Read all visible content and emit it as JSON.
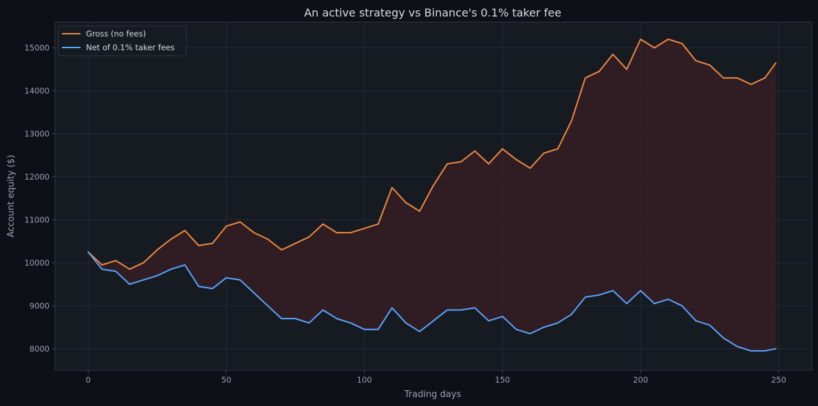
{
  "chart_data": {
    "type": "line",
    "title": "An active strategy vs Binance's 0.1% taker fee",
    "xlabel": "Trading days",
    "ylabel": "Account equity ($)",
    "xlim": [
      -12,
      262
    ],
    "ylim": [
      7500,
      15600
    ],
    "xticks": [
      0,
      50,
      100,
      150,
      200,
      250
    ],
    "yticks": [
      8000,
      9000,
      10000,
      11000,
      12000,
      13000,
      14000,
      15000
    ],
    "grid": true,
    "legend": "top-left",
    "fill_between": true,
    "colors": {
      "background": "#0d1117",
      "plot_background": "#161b22",
      "gross": "#f0883e",
      "net": "#58a6ff",
      "fill": "#3a1f24"
    },
    "series": [
      {
        "name": "Gross (no fees)",
        "x": [
          0,
          5,
          10,
          15,
          20,
          25,
          30,
          35,
          40,
          45,
          50,
          55,
          60,
          65,
          70,
          75,
          80,
          85,
          90,
          95,
          100,
          105,
          110,
          115,
          120,
          125,
          130,
          135,
          140,
          145,
          150,
          155,
          160,
          165,
          170,
          175,
          180,
          185,
          190,
          195,
          200,
          205,
          210,
          215,
          220,
          225,
          230,
          235,
          240,
          245,
          249
        ],
        "values": [
          10250,
          9950,
          10050,
          9850,
          10000,
          10300,
          10550,
          10750,
          10400,
          10450,
          10850,
          10950,
          10700,
          10550,
          10300,
          10450,
          10600,
          10900,
          10700,
          10700,
          10800,
          10900,
          11750,
          11400,
          11200,
          11800,
          12300,
          12350,
          12600,
          12300,
          12650,
          12400,
          12200,
          12550,
          12650,
          13300,
          14300,
          14450,
          14850,
          14500,
          15200,
          15000,
          15200,
          15100,
          14700,
          14600,
          14300,
          14300,
          14150,
          14300,
          14650
        ]
      },
      {
        "name": "Net of 0.1% taker fees",
        "x": [
          0,
          5,
          10,
          15,
          20,
          25,
          30,
          35,
          40,
          45,
          50,
          55,
          60,
          65,
          70,
          75,
          80,
          85,
          90,
          95,
          100,
          105,
          110,
          115,
          120,
          125,
          130,
          135,
          140,
          145,
          150,
          155,
          160,
          165,
          170,
          175,
          180,
          185,
          190,
          195,
          200,
          205,
          210,
          215,
          220,
          225,
          230,
          235,
          240,
          245,
          249
        ],
        "values": [
          10250,
          9850,
          9800,
          9500,
          9600,
          9700,
          9850,
          9950,
          9450,
          9400,
          9650,
          9600,
          9300,
          9000,
          8700,
          8700,
          8600,
          8900,
          8700,
          8600,
          8450,
          8450,
          8950,
          8600,
          8400,
          8650,
          8900,
          8900,
          8950,
          8650,
          8750,
          8450,
          8350,
          8500,
          8600,
          8800,
          9200,
          9250,
          9350,
          9050,
          9350,
          9050,
          9150,
          9000,
          8650,
          8550,
          8250,
          8050,
          7950,
          7950,
          8000
        ]
      }
    ]
  }
}
